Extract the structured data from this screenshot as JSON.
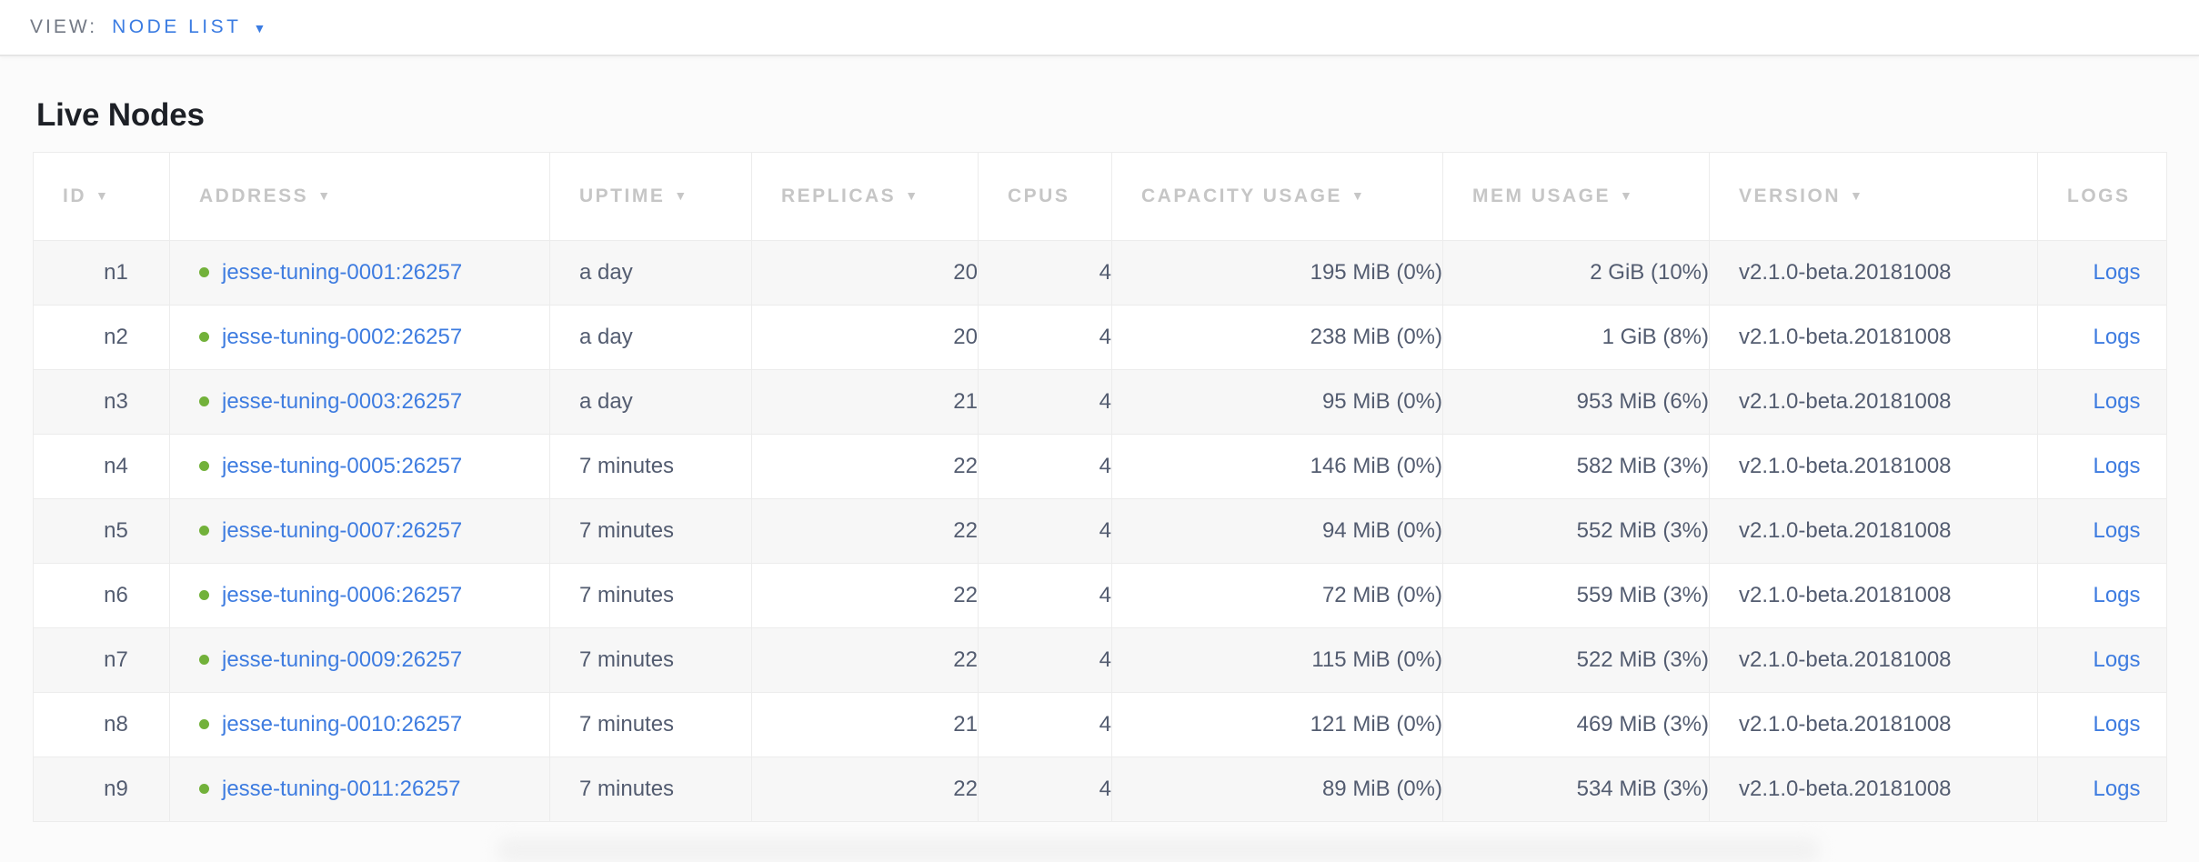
{
  "view_bar": {
    "label": "VIEW:",
    "selected": "NODE LIST",
    "caret": "▼"
  },
  "page": {
    "title": "Live Nodes"
  },
  "colors": {
    "accent_blue": "#3b7ce2",
    "link_blue": "#3e7ce0",
    "healthy_green": "#72b13a",
    "header_gray": "#c6c6c6",
    "zebra_row": "#f7f7f7"
  },
  "table": {
    "sort_arrow": "▼",
    "columns": [
      {
        "key": "id",
        "label": "ID",
        "sortable": true
      },
      {
        "key": "address",
        "label": "ADDRESS",
        "sortable": true
      },
      {
        "key": "uptime",
        "label": "UPTIME",
        "sortable": true
      },
      {
        "key": "replicas",
        "label": "REPLICAS",
        "sortable": true
      },
      {
        "key": "cpus",
        "label": "CPUS",
        "sortable": false
      },
      {
        "key": "capacity_usage",
        "label": "CAPACITY USAGE",
        "sortable": true
      },
      {
        "key": "mem_usage",
        "label": "MEM USAGE",
        "sortable": true
      },
      {
        "key": "version",
        "label": "VERSION",
        "sortable": true
      },
      {
        "key": "logs",
        "label": "LOGS",
        "sortable": false
      }
    ],
    "rows": [
      {
        "id": "n1",
        "status": "healthy",
        "address": "jesse-tuning-0001:26257",
        "uptime": "a day",
        "replicas": "20",
        "cpus": "4",
        "capacity_usage": "195 MiB (0%)",
        "mem_usage": "2 GiB (10%)",
        "version": "v2.1.0-beta.20181008",
        "logs": "Logs"
      },
      {
        "id": "n2",
        "status": "healthy",
        "address": "jesse-tuning-0002:26257",
        "uptime": "a day",
        "replicas": "20",
        "cpus": "4",
        "capacity_usage": "238 MiB (0%)",
        "mem_usage": "1 GiB (8%)",
        "version": "v2.1.0-beta.20181008",
        "logs": "Logs"
      },
      {
        "id": "n3",
        "status": "healthy",
        "address": "jesse-tuning-0003:26257",
        "uptime": "a day",
        "replicas": "21",
        "cpus": "4",
        "capacity_usage": "95 MiB (0%)",
        "mem_usage": "953 MiB (6%)",
        "version": "v2.1.0-beta.20181008",
        "logs": "Logs"
      },
      {
        "id": "n4",
        "status": "healthy",
        "address": "jesse-tuning-0005:26257",
        "uptime": "7 minutes",
        "replicas": "22",
        "cpus": "4",
        "capacity_usage": "146 MiB (0%)",
        "mem_usage": "582 MiB (3%)",
        "version": "v2.1.0-beta.20181008",
        "logs": "Logs"
      },
      {
        "id": "n5",
        "status": "healthy",
        "address": "jesse-tuning-0007:26257",
        "uptime": "7 minutes",
        "replicas": "22",
        "cpus": "4",
        "capacity_usage": "94 MiB (0%)",
        "mem_usage": "552 MiB (3%)",
        "version": "v2.1.0-beta.20181008",
        "logs": "Logs"
      },
      {
        "id": "n6",
        "status": "healthy",
        "address": "jesse-tuning-0006:26257",
        "uptime": "7 minutes",
        "replicas": "22",
        "cpus": "4",
        "capacity_usage": "72 MiB (0%)",
        "mem_usage": "559 MiB (3%)",
        "version": "v2.1.0-beta.20181008",
        "logs": "Logs"
      },
      {
        "id": "n7",
        "status": "healthy",
        "address": "jesse-tuning-0009:26257",
        "uptime": "7 minutes",
        "replicas": "22",
        "cpus": "4",
        "capacity_usage": "115 MiB (0%)",
        "mem_usage": "522 MiB (3%)",
        "version": "v2.1.0-beta.20181008",
        "logs": "Logs"
      },
      {
        "id": "n8",
        "status": "healthy",
        "address": "jesse-tuning-0010:26257",
        "uptime": "7 minutes",
        "replicas": "21",
        "cpus": "4",
        "capacity_usage": "121 MiB (0%)",
        "mem_usage": "469 MiB (3%)",
        "version": "v2.1.0-beta.20181008",
        "logs": "Logs"
      },
      {
        "id": "n9",
        "status": "healthy",
        "address": "jesse-tuning-0011:26257",
        "uptime": "7 minutes",
        "replicas": "22",
        "cpus": "4",
        "capacity_usage": "89 MiB (0%)",
        "mem_usage": "534 MiB (3%)",
        "version": "v2.1.0-beta.20181008",
        "logs": "Logs"
      }
    ]
  }
}
